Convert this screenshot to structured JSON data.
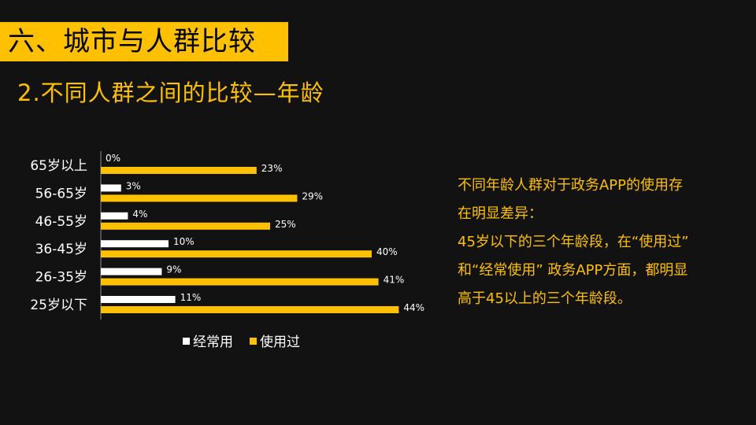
{
  "slide": {
    "title": "六、城市与人群比较",
    "subtitle": "2.不同人群之间的比较—年龄"
  },
  "note": {
    "lines": [
      "不同年龄人群对于政务APP的使用存",
      "在明显差异：",
      "45岁以下的三个年龄段，在“使用过”",
      "和“经常使用” 政务APP方面，都明显",
      "高于45以上的三个年龄段。"
    ]
  },
  "colors": {
    "background": "#121212",
    "accent": "#ffc000",
    "series_often": "#ffffff",
    "series_used": "#ffc000",
    "text": "#ffffff"
  },
  "chart_data": {
    "type": "bar",
    "orientation": "horizontal",
    "categories": [
      "65岁以上",
      "56-65岁",
      "46-55岁",
      "36-45岁",
      "26-35岁",
      "25岁以下"
    ],
    "series": [
      {
        "name": "经常用",
        "values": [
          0,
          3,
          4,
          10,
          9,
          11
        ],
        "labels": [
          "0%",
          "3%",
          "4%",
          "10%",
          "9%",
          "11%"
        ]
      },
      {
        "name": "使用过",
        "values": [
          23,
          29,
          25,
          40,
          41,
          44
        ],
        "labels": [
          "23%",
          "29%",
          "25%",
          "40%",
          "41%",
          "44%"
        ]
      }
    ],
    "value_unit": "%",
    "xlim": [
      0,
      50
    ],
    "grid": false,
    "legend_position": "bottom"
  }
}
